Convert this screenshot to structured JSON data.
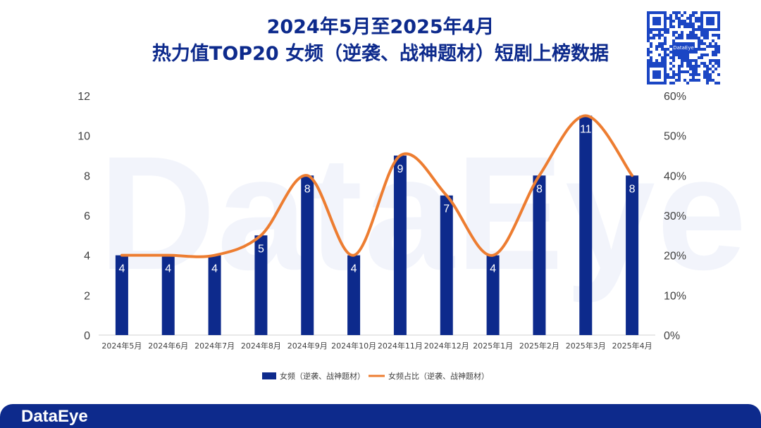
{
  "title_line1": "2024年5月至2025年4月",
  "title_line2": "热力值TOP20 女频（逆袭、战神题材）短剧上榜数据",
  "brand": "DataEye",
  "qr_label": "DataEye",
  "watermark": "DataEye",
  "colors": {
    "bar": "#0d2a8c",
    "line": "#ed7d31",
    "title": "#0d2a8c",
    "footer": "#0d2a8c"
  },
  "chart_data": {
    "type": "bar",
    "categories": [
      "2024年5月",
      "2024年6月",
      "2024年7月",
      "2024年8月",
      "2024年9月",
      "2024年10月",
      "2024年11月",
      "2024年12月",
      "2025年1月",
      "2025年2月",
      "2025年3月",
      "2025年4月"
    ],
    "series": [
      {
        "name": "女频（逆袭、战神题材）",
        "type": "bar",
        "axis": "left",
        "values": [
          4,
          4,
          4,
          5,
          8,
          4,
          9,
          7,
          4,
          8,
          11,
          8
        ]
      },
      {
        "name": "女频占比（逆袭、战神题材）",
        "type": "line",
        "axis": "right",
        "values": [
          20,
          20,
          20,
          25,
          40,
          20,
          45,
          35,
          20,
          40,
          55,
          40
        ]
      }
    ],
    "y_left": {
      "min": 0,
      "max": 12,
      "ticks": [
        0,
        2,
        4,
        6,
        8,
        10,
        12
      ]
    },
    "y_right": {
      "min": 0,
      "max": 60,
      "ticks": [
        "0%",
        "10%",
        "20%",
        "30%",
        "40%",
        "50%",
        "60%"
      ]
    },
    "data_labels": true,
    "legend": "bottom",
    "grid": false
  }
}
